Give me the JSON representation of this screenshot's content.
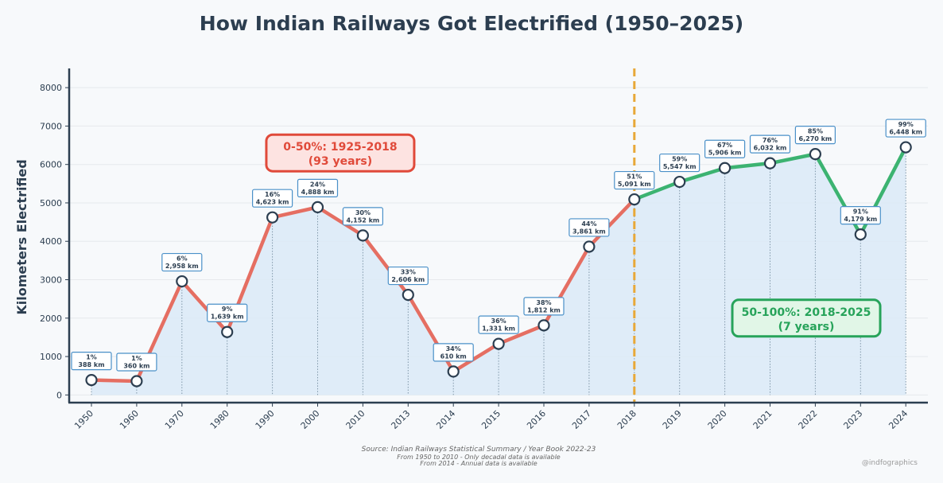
{
  "chart_data": {
    "type": "line",
    "title": "How Indian Railways Got Electrified (1950–2025)",
    "ylabel": "Kilometers Electrified",
    "xlabel": "",
    "ylim": [
      -200,
      8500
    ],
    "yticks": [
      0,
      1000,
      2000,
      3000,
      4000,
      5000,
      6000,
      7000,
      8000
    ],
    "grid": true,
    "categories": [
      "1950",
      "1960",
      "1970",
      "1980",
      "1990",
      "2000",
      "2010",
      "2013",
      "2014",
      "2015",
      "2016",
      "2017",
      "2018",
      "2019",
      "2020",
      "2021",
      "2022",
      "2023",
      "2024"
    ],
    "values": [
      388,
      360,
      2958,
      1639,
      4623,
      4888,
      4152,
      2606,
      610,
      1331,
      1812,
      3861,
      5091,
      5547,
      5906,
      6032,
      6270,
      4179,
      6448
    ],
    "pct_labels": [
      "1%",
      "1%",
      "6%",
      "9%",
      "16%",
      "24%",
      "30%",
      "33%",
      "34%",
      "36%",
      "38%",
      "44%",
      "51%",
      "59%",
      "67%",
      "76%",
      "85%",
      "91%",
      "99%"
    ],
    "km_labels": [
      "388 km",
      "360 km",
      "2,958 km",
      "1,639 km",
      "4,623 km",
      "4,888 km",
      "4,152 km",
      "2,606 km",
      "610 km",
      "1,331 km",
      "1,812 km",
      "3,861 km",
      "5,091 km",
      "5,547 km",
      "5,906 km",
      "6,032 km",
      "6,270 km",
      "4,179 km",
      "6,448 km"
    ],
    "split_category": "2018",
    "annotations": [
      {
        "line1": "0-50%: 1925-2018",
        "line2": "(93 years)",
        "color": "#e04a3a",
        "fill": "#fde3e1",
        "anchor_x": 5.5,
        "anchor_y": 6300
      },
      {
        "line1": "50-100%: 2018-2025",
        "line2": "(7 years)",
        "color": "#27a35a",
        "fill": "#e1f6e7",
        "anchor_x": 15.8,
        "anchor_y": 2000
      }
    ],
    "colors": {
      "before": "#e56e62",
      "after": "#3cb371",
      "fill": "#dbeaf7",
      "divider": "#e8a838",
      "axis": "#2c3e50",
      "label_border": "#4a90c8"
    }
  },
  "source": {
    "line1": "Source: Indian Railways Statistical Summary / Year Book 2022-23",
    "line2": "From 1950 to 2010 - Only decadal data is available",
    "line3": "From 2014 - Annual data is available"
  },
  "credit": "@indfographics"
}
